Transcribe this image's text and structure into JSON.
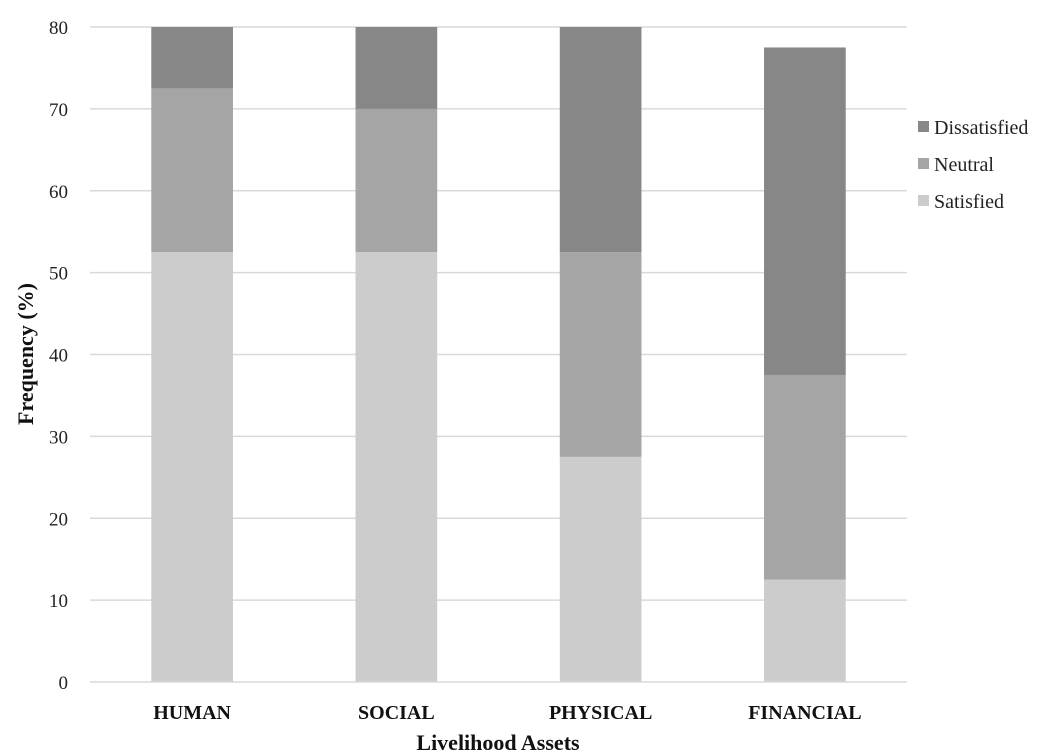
{
  "chart_data": {
    "type": "bar",
    "stacked": true,
    "title": "",
    "xlabel": "Livelihood Assets",
    "ylabel": "Frequency (%)",
    "categories": [
      "HUMAN",
      "SOCIAL",
      "PHYSICAL",
      "FINANCIAL"
    ],
    "series": [
      {
        "name": "Satisfied",
        "values": [
          52.5,
          52.5,
          27.5,
          12.5
        ],
        "color": "#cccccc"
      },
      {
        "name": "Neutral",
        "values": [
          20,
          17.5,
          25,
          25
        ],
        "color": "#a5a5a5"
      },
      {
        "name": "Dissatisfied",
        "values": [
          7.5,
          10,
          27.5,
          40
        ],
        "color": "#878787"
      }
    ],
    "ylim": [
      0,
      80
    ],
    "yticks": [
      0,
      10,
      20,
      30,
      40,
      50,
      60,
      70,
      80
    ],
    "grid": true,
    "legend_position": "right",
    "legend_order": [
      "Dissatisfied",
      "Neutral",
      "Satisfied"
    ]
  }
}
